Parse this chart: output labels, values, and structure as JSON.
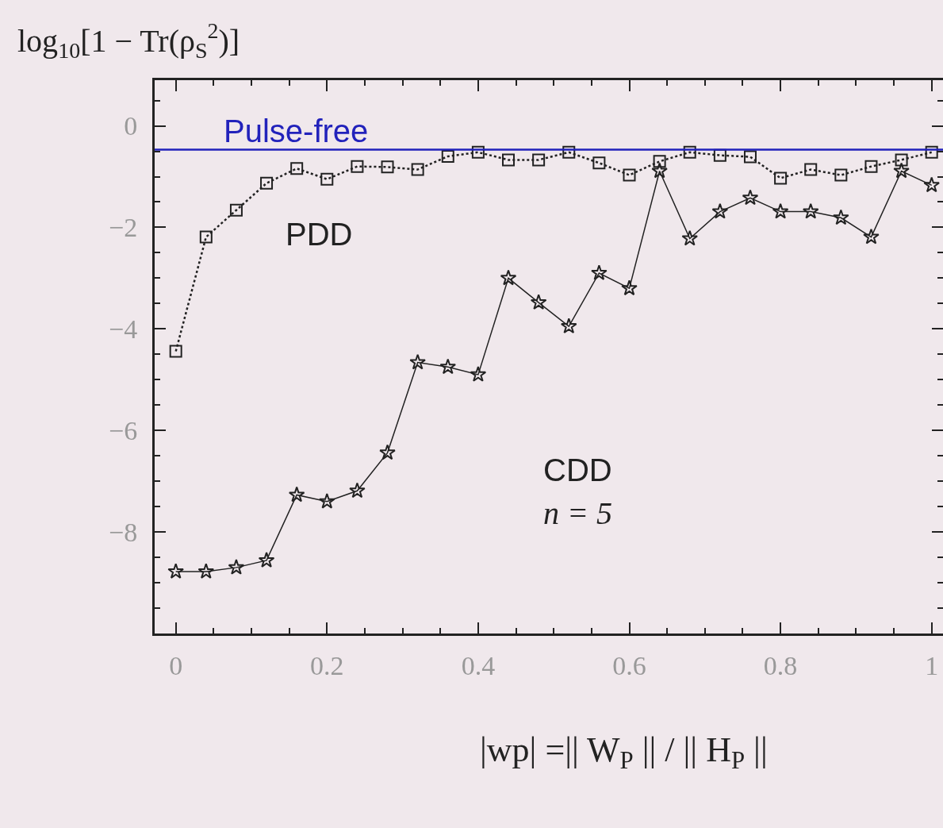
{
  "chart_data": {
    "type": "line",
    "ylabel": "log$_{10}$[1 − Tr(ρ$_{S}$$^{2}$)]",
    "xlabel": "|wp| =|| W$_{P}$ || / || H$_{P}$ ||",
    "x": [
      0,
      0.04,
      0.08,
      0.12,
      0.16,
      0.2,
      0.24,
      0.28,
      0.32,
      0.36,
      0.4,
      0.44,
      0.48,
      0.52,
      0.56,
      0.6,
      0.64,
      0.68,
      0.72,
      0.76,
      0.8,
      0.84,
      0.88,
      0.92,
      0.96,
      1.0
    ],
    "series": [
      {
        "name": "PDD",
        "color": "#222222",
        "marker": "square",
        "line_style": "dotted",
        "values": [
          -4.44,
          -2.19,
          -1.66,
          -1.13,
          -0.84,
          -1.05,
          -0.8,
          -0.81,
          -0.86,
          -0.6,
          -0.52,
          -0.67,
          -0.67,
          -0.52,
          -0.73,
          -0.97,
          -0.7,
          -0.52,
          -0.58,
          -0.61,
          -1.03,
          -0.86,
          -0.97,
          -0.8,
          -0.67,
          -0.52
        ]
      },
      {
        "name": "CDD",
        "color": "#222222",
        "marker": "star",
        "line_style": "solid",
        "values": [
          -8.78,
          -8.78,
          -8.7,
          -8.56,
          -7.27,
          -7.4,
          -7.19,
          -6.44,
          -4.66,
          -4.75,
          -4.9,
          -3.0,
          -3.48,
          -3.95,
          -2.9,
          -3.2,
          -0.89,
          -2.22,
          -1.69,
          -1.42,
          -1.69,
          -1.69,
          -1.81,
          -2.19,
          -0.89,
          -1.17
        ]
      }
    ],
    "annotations": [
      "n = 5"
    ],
    "ref_lines": [
      {
        "axis": "y",
        "value": -0.47,
        "label": "Pulse-free",
        "color": "#2222bb"
      }
    ],
    "xlim": [
      -0.028,
      1.015
    ],
    "xticks": [
      0,
      0.2,
      0.4,
      0.6,
      0.8,
      1
    ],
    "ylim": [
      -10,
      0.9
    ],
    "yticks": [
      0,
      -2,
      -4,
      -6,
      -8
    ],
    "grid": false,
    "legend": false
  }
}
